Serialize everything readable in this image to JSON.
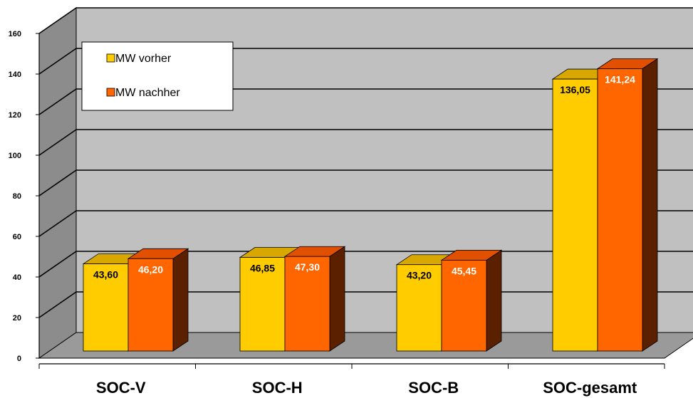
{
  "chart_data": {
    "type": "bar",
    "categories": [
      "SOC-V",
      "SOC-H",
      "SOC-B",
      "SOC-gesamt"
    ],
    "series": [
      {
        "name": "MW vorher",
        "values": [
          43.6,
          46.85,
          43.2,
          136.05
        ],
        "labels": [
          "43,60",
          "46,85",
          "43,20",
          "136,05"
        ]
      },
      {
        "name": "MW nachher",
        "values": [
          46.2,
          47.3,
          45.45,
          141.24
        ],
        "labels": [
          "46,20",
          "47,30",
          "45,45",
          "141,24"
        ]
      }
    ],
    "yticks": [
      "0",
      "20",
      "40",
      "60",
      "80",
      "100",
      "120",
      "140",
      "160"
    ],
    "ylim": [
      0,
      160
    ],
    "grid": true,
    "legend_position": "top-left",
    "style": "3d-bar",
    "colors": {
      "series1_front": "#ffcc00",
      "series1_side": "#5a4500",
      "series1_top": "#d9a800",
      "series2_front": "#ff6600",
      "series2_side": "#5a2000",
      "series2_top": "#e05000",
      "back_wall": "#c0c0c0",
      "side_wall": "#8c8c8c",
      "floor": "#9a9a9a",
      "label_dark": "#000000",
      "label_light": "#ffffff"
    }
  }
}
